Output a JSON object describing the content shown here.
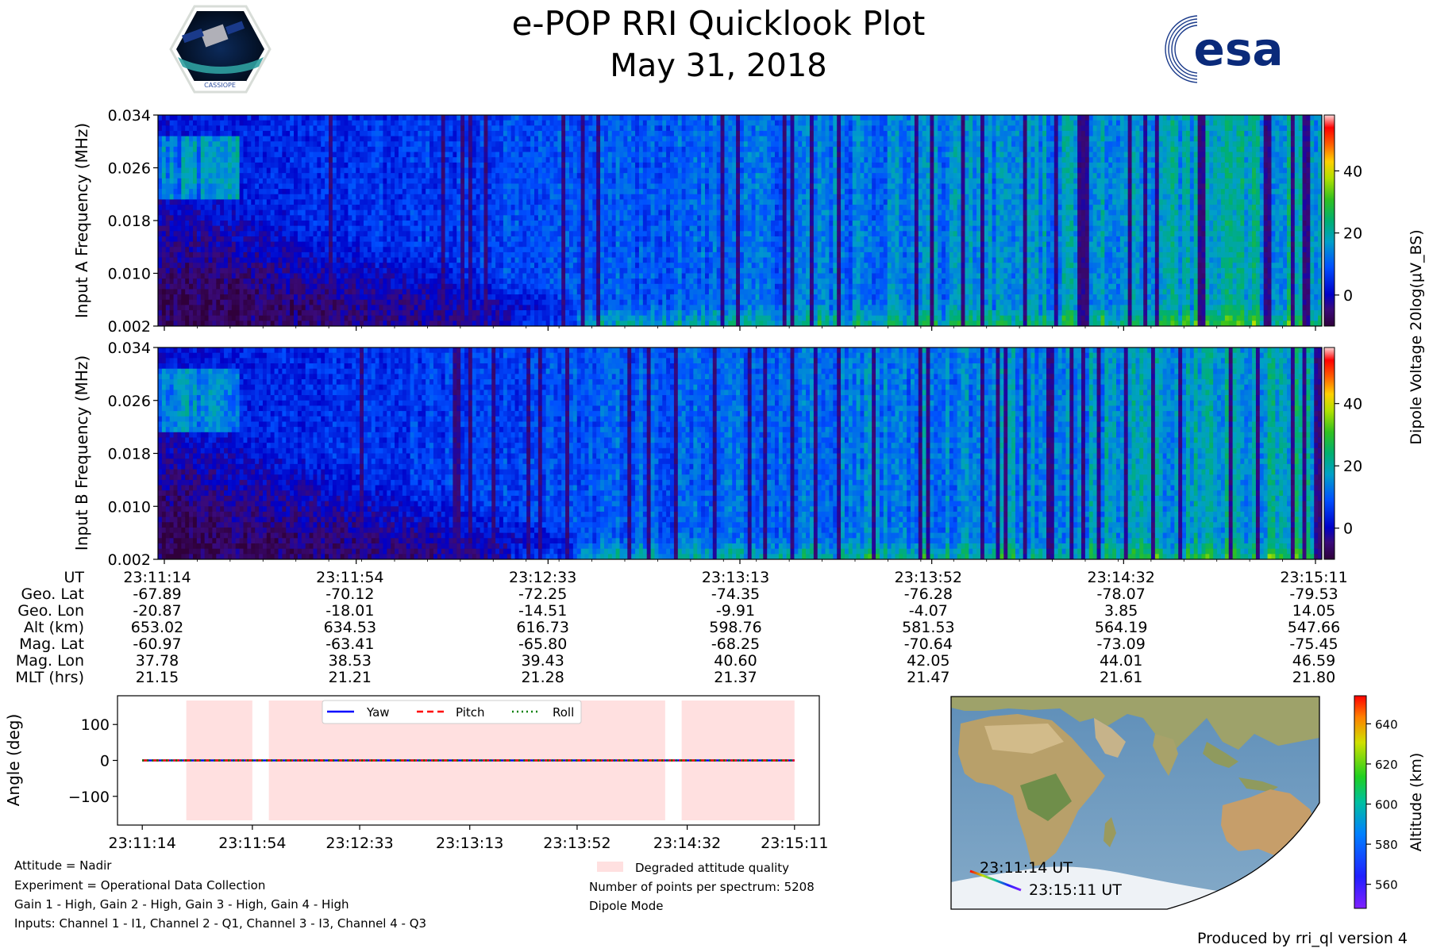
{
  "header": {
    "title": "e-POP RRI Quicklook Plot",
    "date": "May 31, 2018",
    "logo_left_text": "CASSIOPE",
    "logo_right_text": "esa"
  },
  "colorbar_top": {
    "label": "Dipole Voltage 20log(μV_BS)",
    "ticks": [
      0,
      20,
      40
    ],
    "range": [
      -10,
      58
    ]
  },
  "orbit_table": {
    "row_labels": [
      "UT",
      "Geo. Lat",
      "Geo. Lon",
      "Alt (km)",
      "Mag. Lat",
      "Mag. Lon",
      "MLT (hrs)"
    ],
    "columns": [
      [
        "23:11:14",
        "-67.89",
        "-20.87",
        "653.02",
        "-60.97",
        "37.78",
        "21.15"
      ],
      [
        "23:11:54",
        "-70.12",
        "-18.01",
        "634.53",
        "-63.41",
        "38.53",
        "21.21"
      ],
      [
        "23:12:33",
        "-72.25",
        "-14.51",
        "616.73",
        "-65.80",
        "39.43",
        "21.28"
      ],
      [
        "23:13:13",
        "-74.35",
        "-9.91",
        "598.76",
        "-68.25",
        "40.60",
        "21.37"
      ],
      [
        "23:13:52",
        "-76.28",
        "-4.07",
        "581.53",
        "-70.64",
        "42.05",
        "21.47"
      ],
      [
        "23:14:32",
        "-78.07",
        "3.85",
        "564.19",
        "-73.09",
        "44.01",
        "21.61"
      ],
      [
        "23:15:11",
        "-79.53",
        "14.05",
        "547.66",
        "-75.45",
        "46.59",
        "21.80"
      ]
    ]
  },
  "map": {
    "start_label": "23:11:14 UT",
    "end_label": "23:15:11 UT",
    "colorbar_label": "Altitude (km)",
    "colorbar_ticks": [
      560,
      580,
      600,
      620,
      640
    ],
    "colorbar_range": [
      548,
      654
    ]
  },
  "notes": {
    "attitude": "Attitude = Nadir",
    "experiment": "Experiment = Operational Data Collection",
    "gains": "Gain 1 - High, Gain 2 - High, Gain 3 - High, Gain 4 - High",
    "inputs": "Inputs: Channel 1 - I1, Channel 2 - Q1, Channel 3 - I3, Channel 4 - Q3",
    "degraded_legend": "Degraded attitude quality",
    "points": "Number of points per spectrum: 5208",
    "mode": "Dipole Mode"
  },
  "footer": "Produced by rri_ql version 4",
  "chart_data": [
    {
      "type": "heatmap",
      "name": "input-a-spectrogram",
      "ylabel": "Input A Frequency (MHz)",
      "y_ticks": [
        "0.002",
        "0.010",
        "0.018",
        "0.026",
        "0.034"
      ],
      "ylim": [
        0.002,
        0.034
      ],
      "x_ticks": [
        "23:11:14",
        "23:11:54",
        "23:12:33",
        "23:13:13",
        "23:13:52",
        "23:14:32",
        "23:15:11"
      ],
      "colorscale": "jet",
      "value_range": [
        -10,
        58
      ]
    },
    {
      "type": "heatmap",
      "name": "input-b-spectrogram",
      "ylabel": "Input B Frequency (MHz)",
      "y_ticks": [
        "0.002",
        "0.010",
        "0.018",
        "0.026",
        "0.034"
      ],
      "ylim": [
        0.002,
        0.034
      ],
      "x_ticks": [
        "23:11:14",
        "23:11:54",
        "23:12:33",
        "23:13:13",
        "23:13:52",
        "23:14:32",
        "23:15:11"
      ],
      "colorscale": "jet",
      "value_range": [
        -10,
        58
      ]
    },
    {
      "type": "line",
      "name": "attitude",
      "ylabel": "Angle (deg)",
      "ylim": [
        -180,
        180
      ],
      "y_ticks": [
        -100,
        0,
        100
      ],
      "x_ticks": [
        "23:11:14",
        "23:11:54",
        "23:12:33",
        "23:13:13",
        "23:13:52",
        "23:14:32",
        "23:15:11"
      ],
      "x_seconds_range": [
        -9,
        246
      ],
      "series": [
        {
          "name": "Yaw",
          "color": "#0000ff",
          "style": "solid",
          "x": [
            0,
            237
          ],
          "y": [
            0,
            0
          ]
        },
        {
          "name": "Pitch",
          "color": "#ff0000",
          "style": "dashed",
          "x": [
            0,
            237
          ],
          "y": [
            0,
            0
          ]
        },
        {
          "name": "Roll",
          "color": "#008000",
          "style": "dotted",
          "x": [
            0,
            237
          ],
          "y": [
            0,
            0
          ]
        }
      ],
      "degraded_intervals": [
        [
          16,
          40
        ],
        [
          46,
          190
        ],
        [
          196,
          237
        ]
      ],
      "degraded_color": "#ffe0e0",
      "legend_loc": "upper center"
    }
  ]
}
